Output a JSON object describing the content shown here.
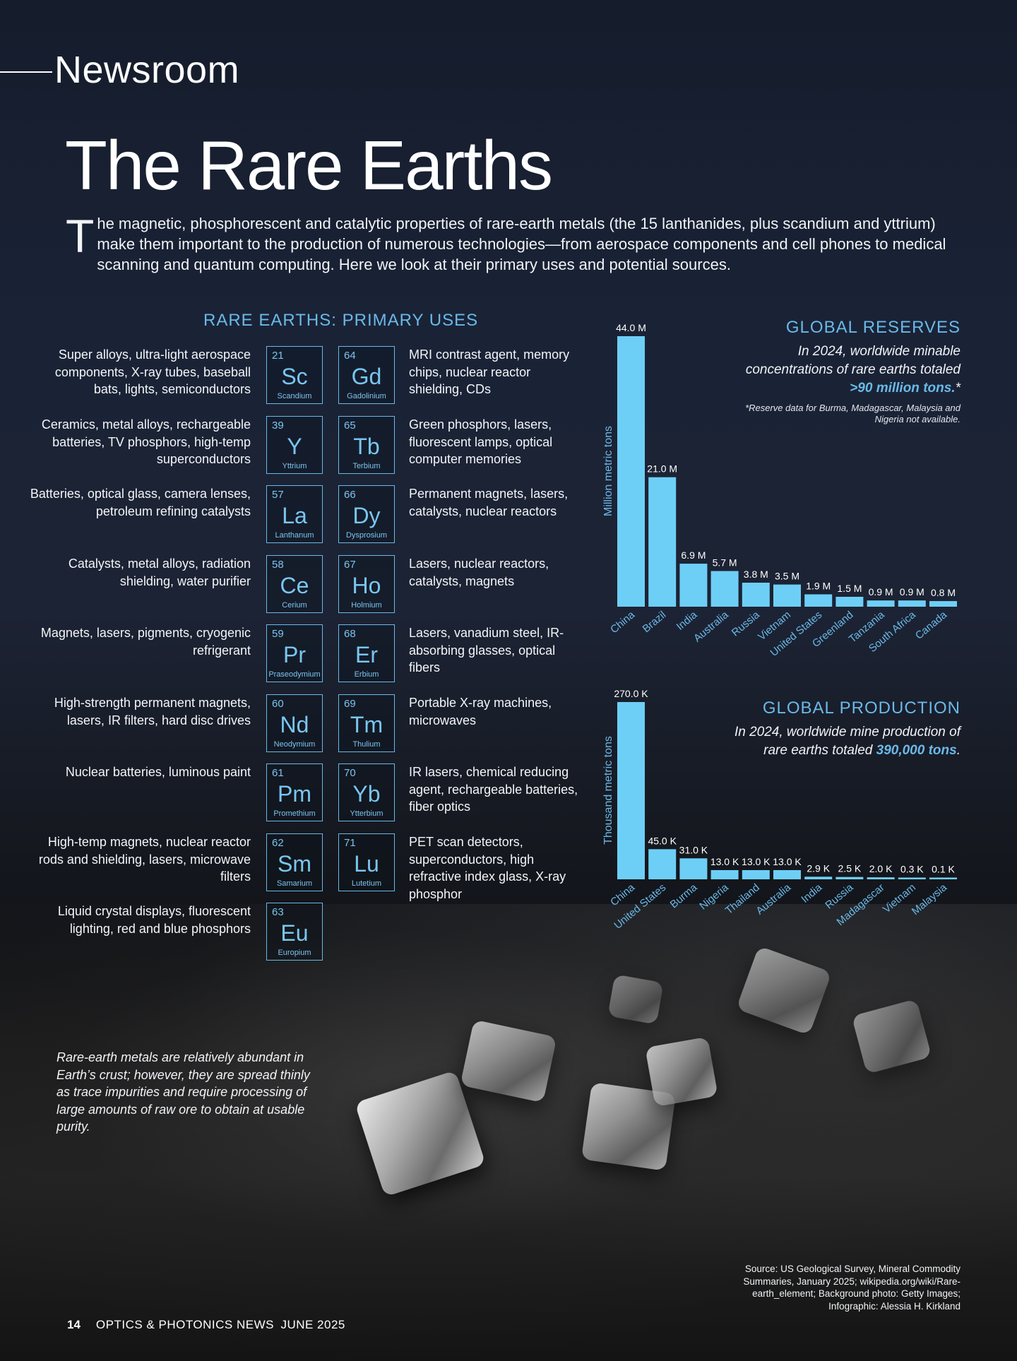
{
  "header": {
    "section": "Newsroom",
    "title": "The Rare Earths"
  },
  "intro": {
    "dropcap": "T",
    "text": "he magnetic, phosphorescent and catalytic properties of rare-earth metals (the 15 lanthanides, plus scandium and yttrium) make them important to the production of numerous technologies—from aerospace components and cell phones to medical scanning and quantum computing. Here we look at their primary uses and potential sources."
  },
  "uses": {
    "heading": "RARE EARTHS: PRIMARY USES",
    "rows": [
      {
        "left": {
          "num": "21",
          "sym": "Sc",
          "name": "Scandium",
          "use": "Super alloys, ultra-light aerospace components, X-ray tubes, baseball bats, lights, semiconductors"
        },
        "right": {
          "num": "64",
          "sym": "Gd",
          "name": "Gadolinium",
          "use": "MRI contrast agent, memory chips, nuclear reactor shielding, CDs"
        }
      },
      {
        "left": {
          "num": "39",
          "sym": "Y",
          "name": "Yttrium",
          "use": "Ceramics, metal alloys, rechargeable batteries, TV phosphors, high-temp superconductors"
        },
        "right": {
          "num": "65",
          "sym": "Tb",
          "name": "Terbium",
          "use": "Green phosphors, lasers, fluorescent lamps, optical computer memories"
        }
      },
      {
        "left": {
          "num": "57",
          "sym": "La",
          "name": "Lanthanum",
          "use": "Batteries, optical glass, camera lenses, petroleum refining catalysts"
        },
        "right": {
          "num": "66",
          "sym": "Dy",
          "name": "Dysprosium",
          "use": "Permanent magnets, lasers, catalysts, nuclear reactors"
        }
      },
      {
        "left": {
          "num": "58",
          "sym": "Ce",
          "name": "Cerium",
          "use": "Catalysts, metal alloys, radiation shielding, water purifier"
        },
        "right": {
          "num": "67",
          "sym": "Ho",
          "name": "Holmium",
          "use": "Lasers, nuclear reactors, catalysts, magnets"
        }
      },
      {
        "left": {
          "num": "59",
          "sym": "Pr",
          "name": "Praseodymium",
          "use": "Magnets, lasers, pigments, cryogenic refrigerant"
        },
        "right": {
          "num": "68",
          "sym": "Er",
          "name": "Erbium",
          "use": "Lasers, vanadium steel, IR-absorbing glasses, optical fibers"
        }
      },
      {
        "left": {
          "num": "60",
          "sym": "Nd",
          "name": "Neodymium",
          "use": "High-strength permanent magnets, lasers, IR filters, hard disc drives"
        },
        "right": {
          "num": "69",
          "sym": "Tm",
          "name": "Thulium",
          "use": "Portable X-ray machines, microwaves"
        }
      },
      {
        "left": {
          "num": "61",
          "sym": "Pm",
          "name": "Promethium",
          "use": "Nuclear batteries, luminous paint"
        },
        "right": {
          "num": "70",
          "sym": "Yb",
          "name": "Ytterbium",
          "use": "IR lasers, chemical reducing agent, rechargeable batteries, fiber optics"
        }
      },
      {
        "left": {
          "num": "62",
          "sym": "Sm",
          "name": "Samarium",
          "use": "High-temp magnets, nuclear reactor rods and shielding, lasers, microwave filters"
        },
        "right": {
          "num": "71",
          "sym": "Lu",
          "name": "Lutetium",
          "use": "PET scan detectors, superconductors, high refractive index glass, X-ray phosphor"
        }
      },
      {
        "left": {
          "num": "63",
          "sym": "Eu",
          "name": "Europium",
          "use": "Liquid crystal displays, fluorescent lighting, red and blue phosphors"
        }
      }
    ]
  },
  "reserves_panel": {
    "heading": "GLOBAL RESERVES",
    "sub_pre": "In 2024, worldwide minable concentrations of rare earths totaled ",
    "sub_bold": ">90 million tons.",
    "sub_post": "*",
    "note": "*Reserve data for Burma, Madagascar, Malaysia and Nigeria not available."
  },
  "production_panel": {
    "heading": "GLOBAL PRODUCTION",
    "sub_pre": "In 2024, worldwide mine production of rare earths totaled ",
    "sub_bold": "390,000 tons",
    "sub_post": "."
  },
  "chart_data": [
    {
      "type": "bar",
      "title": "GLOBAL RESERVES",
      "ylabel": "Million metric tons",
      "categories": [
        "China",
        "Brazil",
        "India",
        "Australia",
        "Russia",
        "Vietnam",
        "United States",
        "Greenland",
        "Tanzania",
        "South Africa",
        "Canada"
      ],
      "values": [
        44.0,
        21.0,
        6.9,
        5.7,
        3.8,
        3.5,
        1.9,
        1.5,
        0.9,
        0.9,
        0.8
      ],
      "labels": [
        "44.0 M",
        "21.0 M",
        "6.9 M",
        "5.7 M",
        "3.8 M",
        "3.5 M",
        "1.9 M",
        "1.5 M",
        "0.9 M",
        "0.9 M",
        "0.8 M"
      ],
      "color": "#6ecff6"
    },
    {
      "type": "bar",
      "title": "GLOBAL PRODUCTION",
      "ylabel": "Thousand  metric tons",
      "categories": [
        "China",
        "United States",
        "Burma",
        "Nigeria",
        "Thailand",
        "Australia",
        "India",
        "Russia",
        "Madagascar",
        "Vietnam",
        "Malaysia"
      ],
      "values": [
        270.0,
        45.0,
        31.0,
        13.0,
        13.0,
        13.0,
        2.9,
        2.5,
        2.0,
        0.3,
        0.1
      ],
      "labels": [
        "270.0 K",
        "45.0 K",
        "31.0 K",
        "13.0 K",
        "13.0 K",
        "13.0 K",
        "2.9 K",
        "2.5 K",
        "2.0 K",
        "0.3 K",
        "0.1 K"
      ],
      "color": "#6ecff6"
    }
  ],
  "caption": "Rare-earth metals are relatively abundant in Earth’s crust; however, they are spread thinly as trace impurities and require processing of large amounts of raw ore to obtain at usable purity.",
  "source": "Source: US Geological Survey, Mineral Commodity Summaries, January 2025; wikipedia.org/wiki/Rare-earth_element; Background photo: Getty Images; Infographic: Alessia H. Kirkland",
  "folio": {
    "page": "14",
    "publication": "OPTICS & PHOTONICS NEWS",
    "date": "JUNE 2025"
  }
}
